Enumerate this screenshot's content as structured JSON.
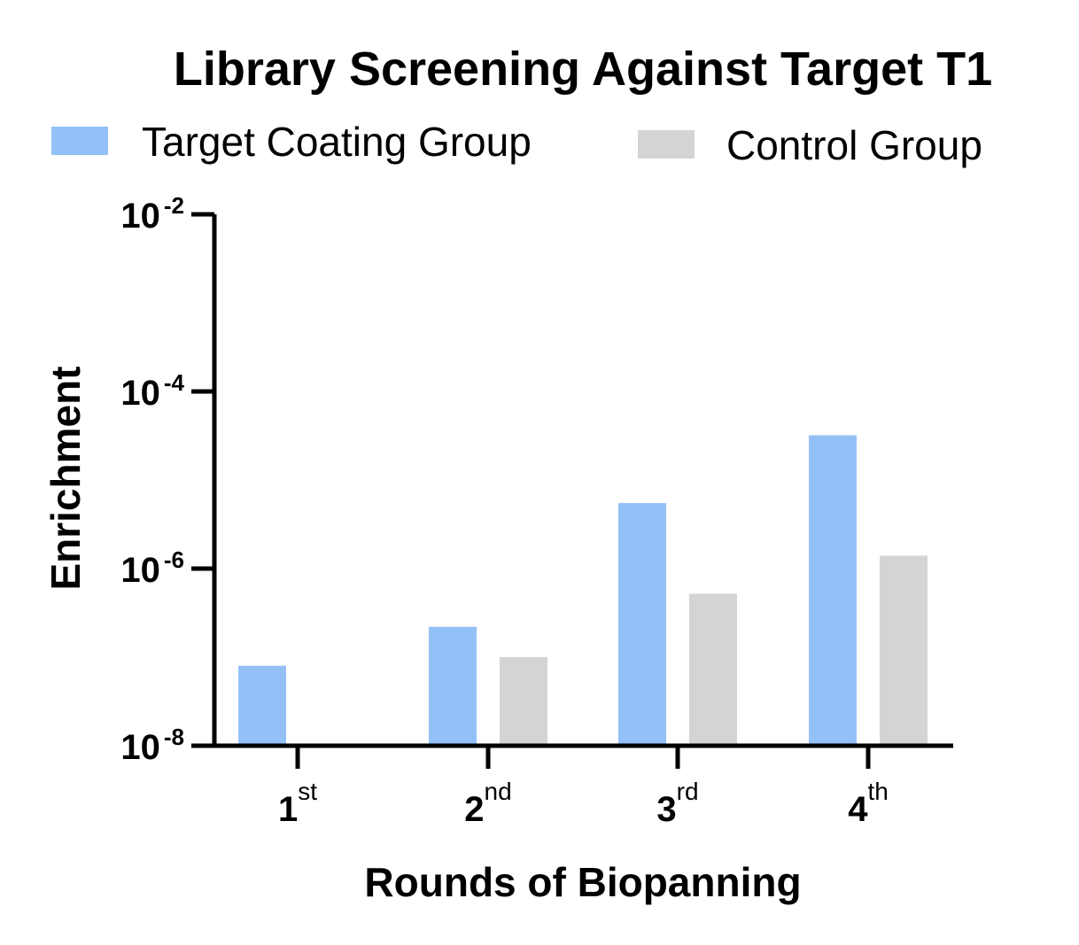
{
  "chart_data": {
    "type": "bar",
    "title": "Library Screening Against Target T1",
    "xlabel": "Rounds of Biopanning",
    "ylabel": "Enrichment",
    "yscale": "log",
    "ylim": [
      1e-08,
      0.01
    ],
    "yticks": [
      {
        "value": 1e-08,
        "base": "10",
        "exp": "-8"
      },
      {
        "value": 1e-06,
        "base": "10",
        "exp": "-6"
      },
      {
        "value": 0.0001,
        "base": "10",
        "exp": "-4"
      },
      {
        "value": 0.01,
        "base": "10",
        "exp": "-2"
      }
    ],
    "categories": [
      {
        "label": "1st",
        "num": "1",
        "suffix": "st"
      },
      {
        "label": "2nd",
        "num": "2",
        "suffix": "nd"
      },
      {
        "label": "3rd",
        "num": "3",
        "suffix": "rd"
      },
      {
        "label": "4th",
        "num": "4",
        "suffix": "th"
      }
    ],
    "series": [
      {
        "name": "Target Coating Group",
        "color": "#94c0f8",
        "values": [
          8e-08,
          2.2e-07,
          5.5e-06,
          3.2e-05
        ]
      },
      {
        "name": "Control Group",
        "color": "#d4d4d4",
        "values": [
          null,
          1e-07,
          5.2e-07,
          1.4e-06
        ]
      }
    ],
    "legend_position": "top",
    "grid": false
  }
}
